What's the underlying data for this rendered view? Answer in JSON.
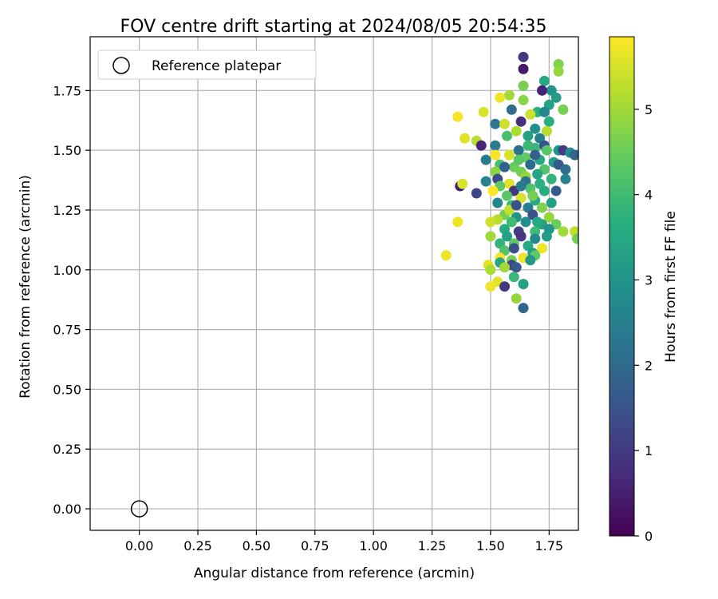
{
  "chart_data": {
    "type": "scatter",
    "title": "FOV centre drift starting at 2024/08/05 20:54:35",
    "xlabel": "Angular distance from reference (arcmin)",
    "ylabel": "Rotation from reference (arcmin)",
    "xlim": [
      -0.21,
      1.875
    ],
    "ylim": [
      -0.09,
      1.975
    ],
    "xticks": [
      "0.00",
      "0.25",
      "0.50",
      "0.75",
      "1.00",
      "1.25",
      "1.50",
      "1.75"
    ],
    "yticks": [
      "0.00",
      "0.25",
      "0.50",
      "0.75",
      "1.00",
      "1.25",
      "1.50",
      "1.75"
    ],
    "grid": true,
    "legend": {
      "placement": "upper-left",
      "entries": [
        "Reference platepar"
      ]
    },
    "reference_point": {
      "x": 0.0,
      "y": 0.0,
      "label": "Reference platepar"
    },
    "colorbar": {
      "label": "Hours from first FF file",
      "colormap": "viridis",
      "range": [
        0,
        5.85
      ],
      "ticks": [
        "0",
        "1",
        "2",
        "3",
        "4",
        "5"
      ]
    },
    "points": [
      [
        1.64,
        1.89,
        1.0
      ],
      [
        1.79,
        1.86,
        4.7
      ],
      [
        1.64,
        1.84,
        0.4
      ],
      [
        1.79,
        1.83,
        4.9
      ],
      [
        1.64,
        1.77,
        4.6
      ],
      [
        1.73,
        1.79,
        3.5
      ],
      [
        1.76,
        1.75,
        3.0
      ],
      [
        1.72,
        1.75,
        0.6
      ],
      [
        1.78,
        1.72,
        3.2
      ],
      [
        1.58,
        1.73,
        5.0
      ],
      [
        1.54,
        1.72,
        5.7
      ],
      [
        1.64,
        1.71,
        4.8
      ],
      [
        1.75,
        1.69,
        3.3
      ],
      [
        1.59,
        1.67,
        2.0
      ],
      [
        1.7,
        1.66,
        3.7
      ],
      [
        1.73,
        1.66,
        2.7
      ],
      [
        1.81,
        1.67,
        4.6
      ],
      [
        1.47,
        1.66,
        5.5
      ],
      [
        1.63,
        1.62,
        0.8
      ],
      [
        1.67,
        1.65,
        5.4
      ],
      [
        1.36,
        1.64,
        5.8
      ],
      [
        1.75,
        1.62,
        3.6
      ],
      [
        1.52,
        1.61,
        2.3
      ],
      [
        1.56,
        1.61,
        5.4
      ],
      [
        1.69,
        1.59,
        2.9
      ],
      [
        1.61,
        1.58,
        5.1
      ],
      [
        1.66,
        1.56,
        3.3
      ],
      [
        1.74,
        1.58,
        5.2
      ],
      [
        1.71,
        1.55,
        2.5
      ],
      [
        1.39,
        1.55,
        5.6
      ],
      [
        1.44,
        1.54,
        5.2
      ],
      [
        1.46,
        1.52,
        0.6
      ],
      [
        1.52,
        1.52,
        2.4
      ],
      [
        1.62,
        1.5,
        2.2
      ],
      [
        1.69,
        1.51,
        3.9
      ],
      [
        1.73,
        1.52,
        1.5
      ],
      [
        1.79,
        1.5,
        3.1
      ],
      [
        1.81,
        1.5,
        1.0
      ],
      [
        1.84,
        1.49,
        2.8
      ],
      [
        1.86,
        1.48,
        1.9
      ],
      [
        1.52,
        1.48,
        5.8
      ],
      [
        1.58,
        1.48,
        5.5
      ],
      [
        1.65,
        1.47,
        4.4
      ],
      [
        1.71,
        1.46,
        3.5
      ],
      [
        1.77,
        1.45,
        3.2
      ],
      [
        1.48,
        1.46,
        2.4
      ],
      [
        1.54,
        1.44,
        4.1
      ],
      [
        1.6,
        1.43,
        4.5
      ],
      [
        1.67,
        1.44,
        2.0
      ],
      [
        1.73,
        1.42,
        4.2
      ],
      [
        1.79,
        1.44,
        1.6
      ],
      [
        1.82,
        1.42,
        2.1
      ],
      [
        1.56,
        1.43,
        1.8
      ],
      [
        1.63,
        1.41,
        4.6
      ],
      [
        1.7,
        1.4,
        3.4
      ],
      [
        1.52,
        1.41,
        4.8
      ],
      [
        1.65,
        1.39,
        4.9
      ],
      [
        1.76,
        1.38,
        3.8
      ],
      [
        1.82,
        1.38,
        2.6
      ],
      [
        1.53,
        1.38,
        1.3
      ],
      [
        1.58,
        1.36,
        5.6
      ],
      [
        1.65,
        1.37,
        2.2
      ],
      [
        1.71,
        1.36,
        3.7
      ],
      [
        1.37,
        1.35,
        0.5
      ],
      [
        1.38,
        1.36,
        5.5
      ],
      [
        1.48,
        1.37,
        2.6
      ],
      [
        1.54,
        1.35,
        4.4
      ],
      [
        1.6,
        1.33,
        0.9
      ],
      [
        1.67,
        1.34,
        4.2
      ],
      [
        1.73,
        1.33,
        3.6
      ],
      [
        1.78,
        1.33,
        1.7
      ],
      [
        1.44,
        1.32,
        1.2
      ],
      [
        1.51,
        1.33,
        5.9
      ],
      [
        1.57,
        1.31,
        4.3
      ],
      [
        1.63,
        1.3,
        5.5
      ],
      [
        1.69,
        1.29,
        3.6
      ],
      [
        1.76,
        1.28,
        3.3
      ],
      [
        1.53,
        1.28,
        2.7
      ],
      [
        1.59,
        1.27,
        3.9
      ],
      [
        1.66,
        1.26,
        2.5
      ],
      [
        1.72,
        1.26,
        4.7
      ],
      [
        1.56,
        1.23,
        4.6
      ],
      [
        1.61,
        1.22,
        3.0
      ],
      [
        1.68,
        1.23,
        1.4
      ],
      [
        1.75,
        1.22,
        4.9
      ],
      [
        1.53,
        1.21,
        5.2
      ],
      [
        1.59,
        1.2,
        4.0
      ],
      [
        1.65,
        1.2,
        2.9
      ],
      [
        1.72,
        1.19,
        3.3
      ],
      [
        1.78,
        1.19,
        4.5
      ],
      [
        1.5,
        1.2,
        5.4
      ],
      [
        1.36,
        1.2,
        5.7
      ],
      [
        1.56,
        1.17,
        3.6
      ],
      [
        1.62,
        1.16,
        1.1
      ],
      [
        1.69,
        1.16,
        4.0
      ],
      [
        1.75,
        1.17,
        3.0
      ],
      [
        1.81,
        1.16,
        5.0
      ],
      [
        1.86,
        1.16,
        5.3
      ],
      [
        1.87,
        1.13,
        4.6
      ],
      [
        1.5,
        1.14,
        5.0
      ],
      [
        1.57,
        1.14,
        3.3
      ],
      [
        1.63,
        1.14,
        0.9
      ],
      [
        1.69,
        1.13,
        2.7
      ],
      [
        1.74,
        1.14,
        3.2
      ],
      [
        1.54,
        1.11,
        3.8
      ],
      [
        1.6,
        1.11,
        4.4
      ],
      [
        1.66,
        1.1,
        3.6
      ],
      [
        1.72,
        1.09,
        5.7
      ],
      [
        1.56,
        1.08,
        4.2
      ],
      [
        1.6,
        1.09,
        1.4
      ],
      [
        1.68,
        1.07,
        3.1
      ],
      [
        1.31,
        1.06,
        5.7
      ],
      [
        1.54,
        1.05,
        5.8
      ],
      [
        1.59,
        1.04,
        4.6
      ],
      [
        1.64,
        1.05,
        5.7
      ],
      [
        1.69,
        1.06,
        4.4
      ],
      [
        1.49,
        1.02,
        5.6
      ],
      [
        1.54,
        1.03,
        3.4
      ],
      [
        1.59,
        1.02,
        1.2
      ],
      [
        1.67,
        1.04,
        3.1
      ],
      [
        1.5,
        1.0,
        5.1
      ],
      [
        1.56,
        1.01,
        5.0
      ],
      [
        1.61,
        1.01,
        1.6
      ],
      [
        1.64,
        0.94,
        1.5
      ],
      [
        1.64,
        0.94,
        3.3
      ],
      [
        1.53,
        0.95,
        5.6
      ],
      [
        1.5,
        0.93,
        5.7
      ],
      [
        1.56,
        0.93,
        0.9
      ],
      [
        1.61,
        0.88,
        4.9
      ],
      [
        1.64,
        0.84,
        1.9
      ],
      [
        1.6,
        0.97,
        3.9
      ],
      [
        1.7,
        1.2,
        3.5
      ],
      [
        1.62,
        1.46,
        4.3
      ],
      [
        1.66,
        1.52,
        3.9
      ],
      [
        1.57,
        1.56,
        4.1
      ],
      [
        1.69,
        1.48,
        1.8
      ],
      [
        1.74,
        1.5,
        4.3
      ],
      [
        1.63,
        1.35,
        2.4
      ],
      [
        1.68,
        1.31,
        4.6
      ],
      [
        1.58,
        1.25,
        5.3
      ],
      [
        1.61,
        1.27,
        1.5
      ]
    ]
  }
}
